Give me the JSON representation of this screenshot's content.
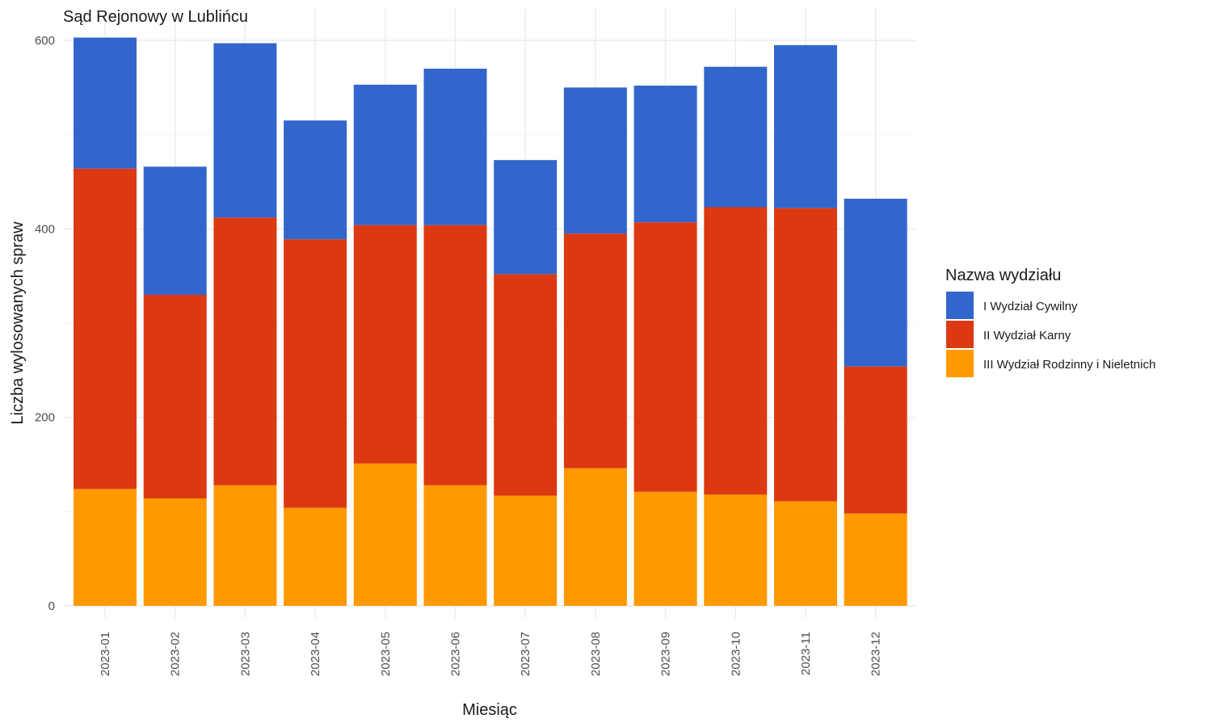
{
  "chart_data": {
    "type": "bar",
    "stacked": true,
    "title": "Sąd Rejonowy w Lublińcu",
    "xlabel": "Miesiąc",
    "ylabel": "Liczba wylosowanych spraw",
    "ylim": [
      0,
      600
    ],
    "yticks": [
      "0",
      "200",
      "400",
      "600"
    ],
    "grid": true,
    "legend_title": "Nazwa wydziału",
    "legend_position": "right",
    "categories": [
      "2023-01",
      "2023-02",
      "2023-03",
      "2023-04",
      "2023-05",
      "2023-06",
      "2023-07",
      "2023-08",
      "2023-09",
      "2023-10",
      "2023-11",
      "2023-12"
    ],
    "series": [
      {
        "name": "I Wydział Cywilny",
        "color": "#3366cc",
        "values": [
          139,
          136,
          185,
          126,
          149,
          166,
          121,
          155,
          145,
          149,
          173,
          178
        ]
      },
      {
        "name": "II Wydział Karny",
        "color": "#dc3912",
        "values": [
          340,
          216,
          284,
          285,
          253,
          276,
          235,
          249,
          286,
          305,
          311,
          156
        ]
      },
      {
        "name": "III Wydział Rodzinny i Nieletnich",
        "color": "#ff9900",
        "values": [
          124,
          114,
          128,
          104,
          151,
          128,
          117,
          146,
          121,
          118,
          111,
          98
        ]
      }
    ]
  }
}
